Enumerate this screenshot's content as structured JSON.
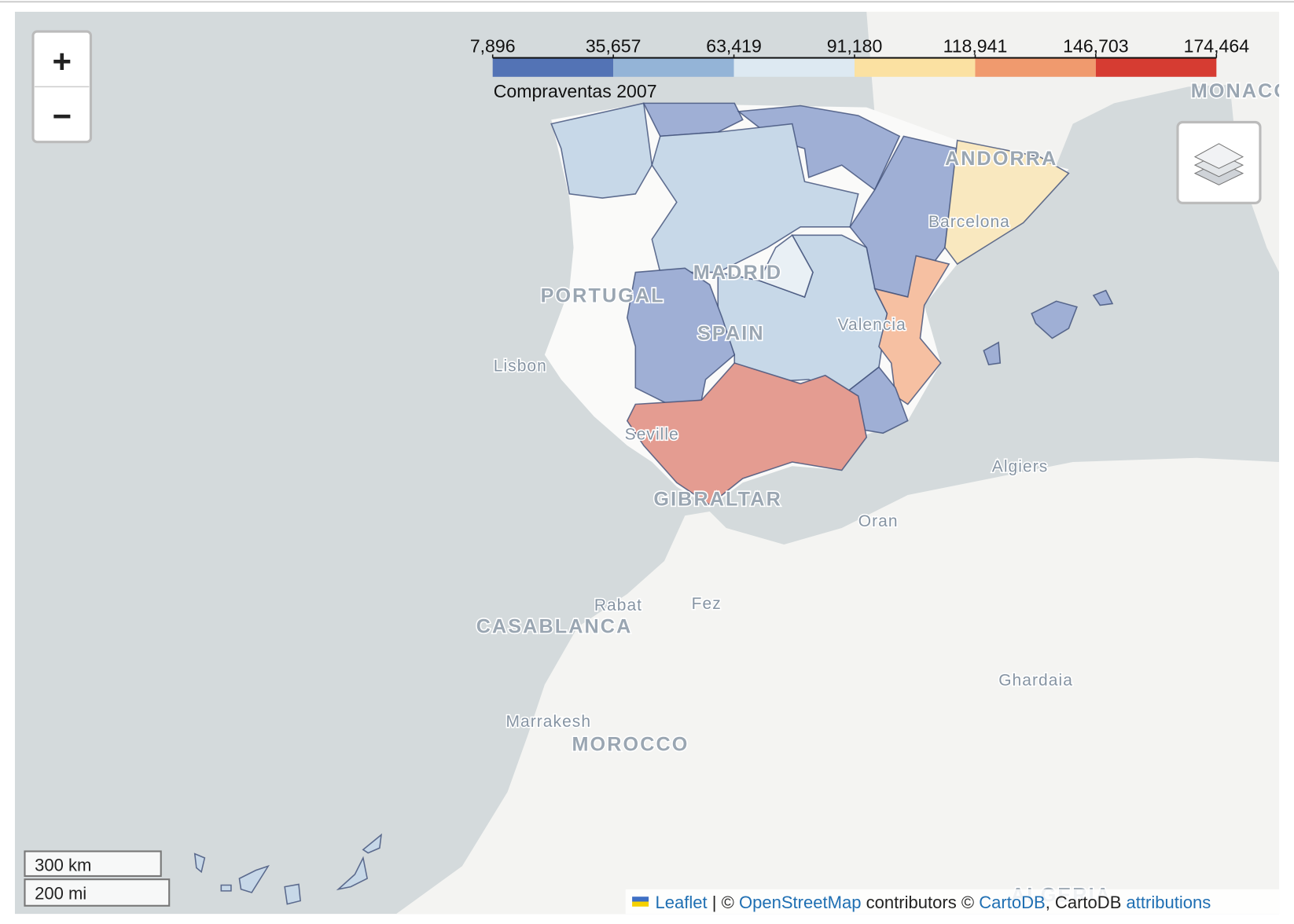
{
  "legend": {
    "title": "Compraventas 2007",
    "ticks": [
      {
        "value": 7896,
        "label": "7,896"
      },
      {
        "value": 35657,
        "label": "35,657"
      },
      {
        "value": 63419,
        "label": "63,419"
      },
      {
        "value": 91180,
        "label": "91,180"
      },
      {
        "value": 118941,
        "label": "118,941"
      },
      {
        "value": 146703,
        "label": "146,703"
      },
      {
        "value": 174464,
        "label": "174,464"
      }
    ],
    "colors": [
      "#5373b5",
      "#94b4d7",
      "#dde9f2",
      "#fbe1a2",
      "#f09a6e",
      "#d63c32"
    ]
  },
  "zoom": {
    "in": "+",
    "out": "−"
  },
  "map": {
    "labels": [
      "MONACO",
      "ANDORRA",
      "Barcelona",
      "MADRID",
      "PORTUGAL",
      "SPAIN",
      "Valencia",
      "Lisbon",
      "Seville",
      "Algiers",
      "GIBRALTAR",
      "Oran",
      "Rabat",
      "Fez",
      "CASABLANCA",
      "Ghardaia",
      "Marrakesh",
      "MOROCCO",
      "ALGERIA"
    ]
  },
  "scale": [
    "300 km",
    "200 mi"
  ],
  "attribution": [
    "Leaflet",
    " | © ",
    "OpenStreetMap",
    " contributors © ",
    "CartoDB",
    ", CartoDB ",
    "attributions"
  ]
}
